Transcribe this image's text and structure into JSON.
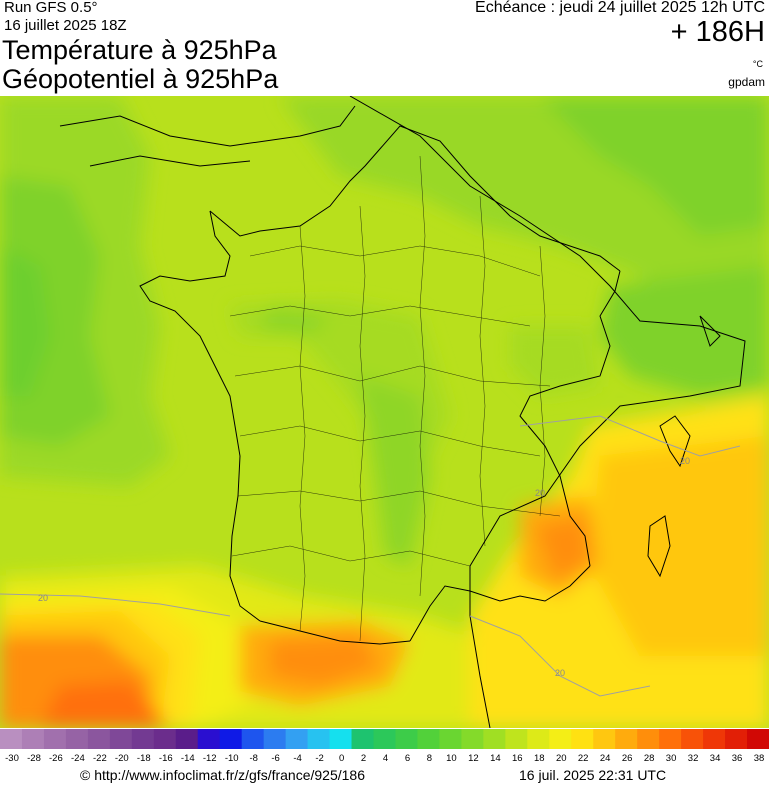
{
  "header": {
    "run": "Run GFS 0.5°",
    "run_date": "16 juillet 2025 18Z",
    "title_line1": "Température à 925hPa",
    "title_line2": "Géopotentiel à 925hPa",
    "echeance": "Echéance : jeudi 24 juillet 2025 12h UTC",
    "horizon": "+ 186H",
    "unit": "°C",
    "brand": "gpdam"
  },
  "map": {
    "isoline_labels": [
      "20",
      "20",
      "20",
      "20"
    ]
  },
  "color_scale": {
    "ticks": [
      "-30",
      "-28",
      "-26",
      "-24",
      "-22",
      "-20",
      "-18",
      "-16",
      "-14",
      "-12",
      "-10",
      "-8",
      "-6",
      "-4",
      "-2",
      "0",
      "2",
      "4",
      "6",
      "8",
      "10",
      "12",
      "14",
      "16",
      "18",
      "20",
      "22",
      "24",
      "26",
      "28",
      "30",
      "32",
      "34",
      "36",
      "38"
    ],
    "colors": [
      "#b98fc0",
      "#ad7fb6",
      "#a170ad",
      "#9663a5",
      "#8b569e",
      "#7f4898",
      "#733a92",
      "#6b2d8c",
      "#5a1d8a",
      "#2a0fd0",
      "#0f1ae6",
      "#1e55ee",
      "#2c7cf0",
      "#33a0f2",
      "#27c2f0",
      "#15e0ee",
      "#1ec36f",
      "#2cc85a",
      "#3dcc49",
      "#52d13a",
      "#6ad631",
      "#84da2a",
      "#a0df23",
      "#bfe41d",
      "#ddea18",
      "#f4ee16",
      "#ffe112",
      "#ffc710",
      "#ffab0d",
      "#ff8e0b",
      "#ff7009",
      "#f85208",
      "#ef3707",
      "#e21f06",
      "#d10805"
    ]
  },
  "footer": {
    "source": "© http://www.infoclimat.fr/z/gfs/france/925/186",
    "generated": "16 juil. 2025 22:31 UTC"
  }
}
